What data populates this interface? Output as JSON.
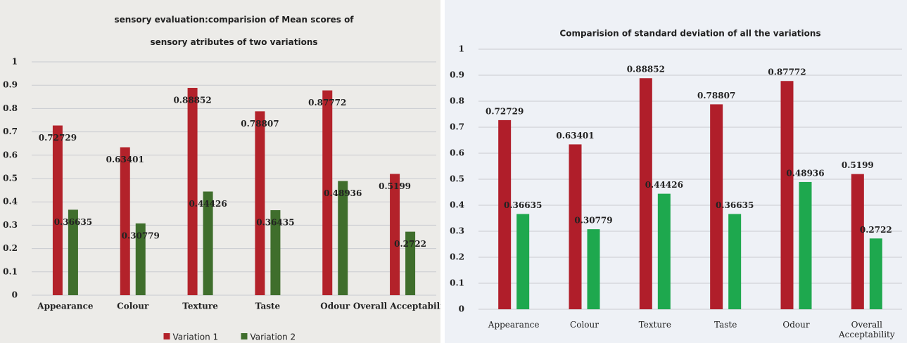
{
  "chart_data": [
    {
      "type": "bar",
      "title": "sensory evaluation:comparision of Mean scores of sensory atributes of two variations",
      "categories": [
        "Appearance",
        "Colour",
        "Texture",
        "Taste",
        "Odour",
        "Overall Acceptability"
      ],
      "series": [
        {
          "name": "Variation 1",
          "color": "#b3222a",
          "values": [
            0.72729,
            0.63401,
            0.88852,
            0.78807,
            0.87772,
            0.5199
          ]
        },
        {
          "name": "Variation 2",
          "color": "#3f6e2c",
          "values": [
            0.36635,
            0.30779,
            0.44426,
            0.36435,
            0.48936,
            0.2722
          ]
        }
      ],
      "ylim": [
        0,
        1
      ],
      "yticks": [
        0,
        0.1,
        0.2,
        0.3,
        0.4,
        0.5,
        0.6,
        0.7,
        0.8,
        0.9,
        1
      ],
      "grid": true,
      "legend": "bottom"
    },
    {
      "type": "bar",
      "title": "Comparision of standard deviation of all the variations",
      "categories": [
        "Appearance",
        "Colour",
        "Texture",
        "Taste",
        "Odour",
        "Overall Acceptability"
      ],
      "series": [
        {
          "name": "Variation 1",
          "color": "#b01e2a",
          "values": [
            0.72729,
            0.63401,
            0.88852,
            0.78807,
            0.87772,
            0.5199
          ]
        },
        {
          "name": "Variation 2",
          "color": "#1ea84e",
          "values": [
            0.36635,
            0.30779,
            0.44426,
            0.36635,
            0.48936,
            0.2722
          ]
        }
      ],
      "ylim": [
        0,
        1
      ],
      "yticks": [
        0,
        0.1,
        0.2,
        0.3,
        0.4,
        0.5,
        0.6,
        0.7,
        0.8,
        0.9,
        1
      ],
      "grid": true
    }
  ]
}
